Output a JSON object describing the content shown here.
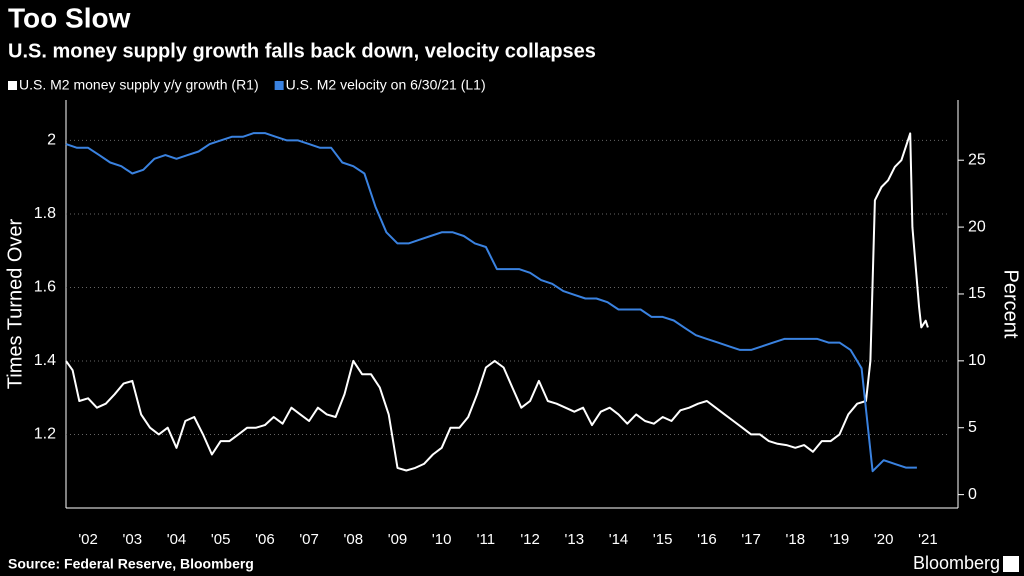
{
  "chart_data": {
    "type": "line",
    "title": "Too Slow",
    "subtitle": "U.S. money supply growth falls back down, velocity collapses",
    "ylabel": "Times Turned Over",
    "y2label": "Percent",
    "source": "Source: Federal Reserve, Bloomberg",
    "brand": "Bloomberg",
    "xlim": [
      2002,
      2022
    ],
    "xticks": [
      {
        "value": 2002.5,
        "label": "'02"
      },
      {
        "value": 2003.5,
        "label": "'03"
      },
      {
        "value": 2004.5,
        "label": "'04"
      },
      {
        "value": 2005.5,
        "label": "'05"
      },
      {
        "value": 2006.5,
        "label": "'06"
      },
      {
        "value": 2007.5,
        "label": "'07"
      },
      {
        "value": 2008.5,
        "label": "'08"
      },
      {
        "value": 2009.5,
        "label": "'09"
      },
      {
        "value": 2010.5,
        "label": "'10"
      },
      {
        "value": 2011.5,
        "label": "'11"
      },
      {
        "value": 2012.5,
        "label": "'12"
      },
      {
        "value": 2013.5,
        "label": "'13"
      },
      {
        "value": 2014.5,
        "label": "'14"
      },
      {
        "value": 2015.5,
        "label": "'15"
      },
      {
        "value": 2016.5,
        "label": "'16"
      },
      {
        "value": 2017.5,
        "label": "'17"
      },
      {
        "value": 2018.5,
        "label": "'18"
      },
      {
        "value": 2019.5,
        "label": "'19"
      },
      {
        "value": 2020.5,
        "label": "'20"
      },
      {
        "value": 2021.5,
        "label": "'21"
      }
    ],
    "ylim": [
      1.0,
      2.11
    ],
    "yticks": [
      1.2,
      1.4,
      1.6,
      1.8,
      2.0
    ],
    "y2lim": [
      -1,
      29.5
    ],
    "y2ticks": [
      0,
      5,
      10,
      15,
      20,
      25
    ],
    "grid": true,
    "series": [
      {
        "name": "U.S. M2 money supply y/y growth (R1)",
        "color": "#ffffff",
        "axis": "y2",
        "x": [
          2002.0,
          2002.15,
          2002.3,
          2002.5,
          2002.7,
          2002.9,
          2003.1,
          2003.3,
          2003.5,
          2003.7,
          2003.9,
          2004.1,
          2004.3,
          2004.5,
          2004.7,
          2004.9,
          2005.1,
          2005.3,
          2005.5,
          2005.7,
          2005.9,
          2006.1,
          2006.3,
          2006.5,
          2006.7,
          2006.9,
          2007.1,
          2007.3,
          2007.5,
          2007.7,
          2007.9,
          2008.1,
          2008.3,
          2008.5,
          2008.7,
          2008.9,
          2009.1,
          2009.3,
          2009.5,
          2009.7,
          2009.9,
          2010.1,
          2010.3,
          2010.5,
          2010.7,
          2010.9,
          2011.1,
          2011.3,
          2011.5,
          2011.7,
          2011.9,
          2012.1,
          2012.3,
          2012.5,
          2012.7,
          2012.9,
          2013.1,
          2013.3,
          2013.5,
          2013.7,
          2013.9,
          2014.1,
          2014.3,
          2014.5,
          2014.7,
          2014.9,
          2015.1,
          2015.3,
          2015.5,
          2015.7,
          2015.9,
          2016.1,
          2016.3,
          2016.5,
          2016.7,
          2016.9,
          2017.1,
          2017.3,
          2017.5,
          2017.7,
          2017.9,
          2018.1,
          2018.3,
          2018.5,
          2018.7,
          2018.9,
          2019.1,
          2019.3,
          2019.5,
          2019.7,
          2019.9,
          2020.1,
          2020.2,
          2020.3,
          2020.45,
          2020.6,
          2020.75,
          2020.9,
          2021.0,
          2021.1,
          2021.15,
          2021.3,
          2021.35,
          2021.45,
          2021.5
        ],
        "values": [
          10,
          9.3,
          7,
          7.2,
          6.5,
          6.8,
          7.5,
          8.3,
          8.5,
          6,
          5,
          4.5,
          5,
          3.5,
          5.5,
          5.8,
          4.5,
          3,
          4,
          4,
          4.5,
          5,
          5,
          5.2,
          5.8,
          5.3,
          6.5,
          6,
          5.5,
          6.5,
          6,
          5.8,
          7.5,
          10,
          9,
          9,
          8,
          6,
          2,
          1.8,
          2,
          2.3,
          3,
          3.5,
          5,
          5,
          5.8,
          7.5,
          9.5,
          10,
          9.5,
          8,
          6.5,
          7,
          8.5,
          7,
          6.8,
          6.5,
          6.2,
          6.5,
          5.2,
          6.2,
          6.5,
          6,
          5.3,
          6,
          5.5,
          5.3,
          5.8,
          5.5,
          6.3,
          6.5,
          6.8,
          7,
          6.5,
          6,
          5.5,
          5,
          4.5,
          4.5,
          4,
          3.8,
          3.7,
          3.5,
          3.7,
          3.2,
          4,
          4,
          4.5,
          6,
          6.8,
          7,
          10,
          22,
          23,
          23.5,
          24.5,
          25,
          26,
          27,
          20,
          14,
          12.5,
          13,
          12.5
        ]
      },
      {
        "name": "U.S. M2 velocity on 6/30/21 (L1)",
        "color": "#3a82e0",
        "axis": "y",
        "x": [
          2002.0,
          2002.25,
          2002.5,
          2002.75,
          2003.0,
          2003.25,
          2003.5,
          2003.75,
          2004.0,
          2004.25,
          2004.5,
          2004.75,
          2005.0,
          2005.25,
          2005.5,
          2005.75,
          2006.0,
          2006.25,
          2006.5,
          2006.75,
          2007.0,
          2007.25,
          2007.5,
          2007.75,
          2008.0,
          2008.25,
          2008.5,
          2008.75,
          2009.0,
          2009.25,
          2009.5,
          2009.75,
          2010.0,
          2010.25,
          2010.5,
          2010.75,
          2011.0,
          2011.25,
          2011.5,
          2011.75,
          2012.0,
          2012.25,
          2012.5,
          2012.75,
          2013.0,
          2013.25,
          2013.5,
          2013.75,
          2014.0,
          2014.25,
          2014.5,
          2014.75,
          2015.0,
          2015.25,
          2015.5,
          2015.75,
          2016.0,
          2016.25,
          2016.5,
          2016.75,
          2017.0,
          2017.25,
          2017.5,
          2017.75,
          2018.0,
          2018.25,
          2018.5,
          2018.75,
          2019.0,
          2019.25,
          2019.5,
          2019.75,
          2020.0,
          2020.25,
          2020.5,
          2020.75,
          2021.0,
          2021.25
        ],
        "values": [
          1.99,
          1.98,
          1.98,
          1.96,
          1.94,
          1.93,
          1.91,
          1.92,
          1.95,
          1.96,
          1.95,
          1.96,
          1.97,
          1.99,
          2.0,
          2.01,
          2.01,
          2.02,
          2.02,
          2.01,
          2.0,
          2.0,
          1.99,
          1.98,
          1.98,
          1.94,
          1.93,
          1.91,
          1.82,
          1.75,
          1.72,
          1.72,
          1.73,
          1.74,
          1.75,
          1.75,
          1.74,
          1.72,
          1.71,
          1.65,
          1.65,
          1.65,
          1.64,
          1.62,
          1.61,
          1.59,
          1.58,
          1.57,
          1.57,
          1.56,
          1.54,
          1.54,
          1.54,
          1.52,
          1.52,
          1.51,
          1.49,
          1.47,
          1.46,
          1.45,
          1.44,
          1.43,
          1.43,
          1.44,
          1.45,
          1.46,
          1.46,
          1.46,
          1.46,
          1.45,
          1.45,
          1.43,
          1.38,
          1.1,
          1.13,
          1.12,
          1.11,
          1.11
        ]
      }
    ]
  }
}
